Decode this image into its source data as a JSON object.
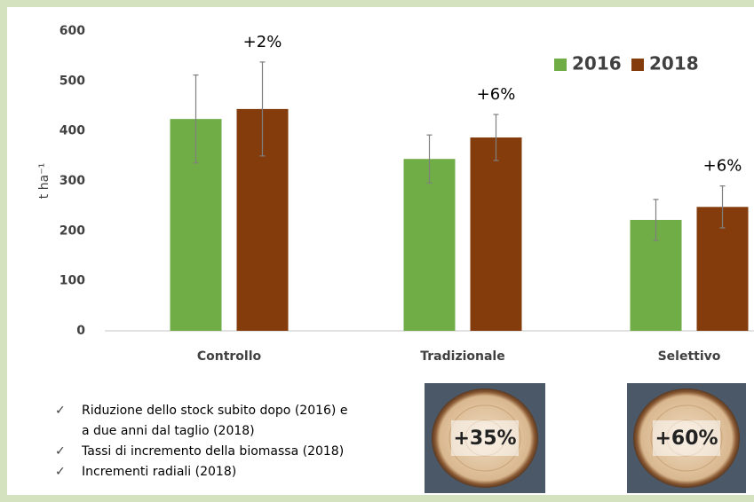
{
  "chart_data": {
    "type": "bar",
    "y_label": "t ha⁻¹",
    "categories": [
      "Controllo",
      "Tradizionale",
      "Selettivo"
    ],
    "series": [
      {
        "name": "2016",
        "color": "#70ad47",
        "values": [
          424,
          344,
          222
        ],
        "errors": [
          88,
          48,
          41
        ]
      },
      {
        "name": "2018",
        "color": "#843c0c",
        "values": [
          444,
          387,
          248
        ],
        "errors": [
          94,
          46,
          42
        ]
      }
    ],
    "annotations": [
      "+2%",
      "+6%",
      "+6%"
    ],
    "ylim": [
      0,
      600
    ],
    "yticks": [
      0,
      100,
      200,
      300,
      400,
      500,
      600
    ],
    "legend": "top-right",
    "notes": [
      [
        "Riduzione dello stock subito dopo (2016) e",
        "a due anni dal taglio (2018)"
      ],
      [
        "Tassi di incremento della biomassa (2018)"
      ],
      [
        "Incrementi radiali (2018)"
      ]
    ],
    "photo_labels": [
      "+35%",
      "+60%"
    ]
  }
}
